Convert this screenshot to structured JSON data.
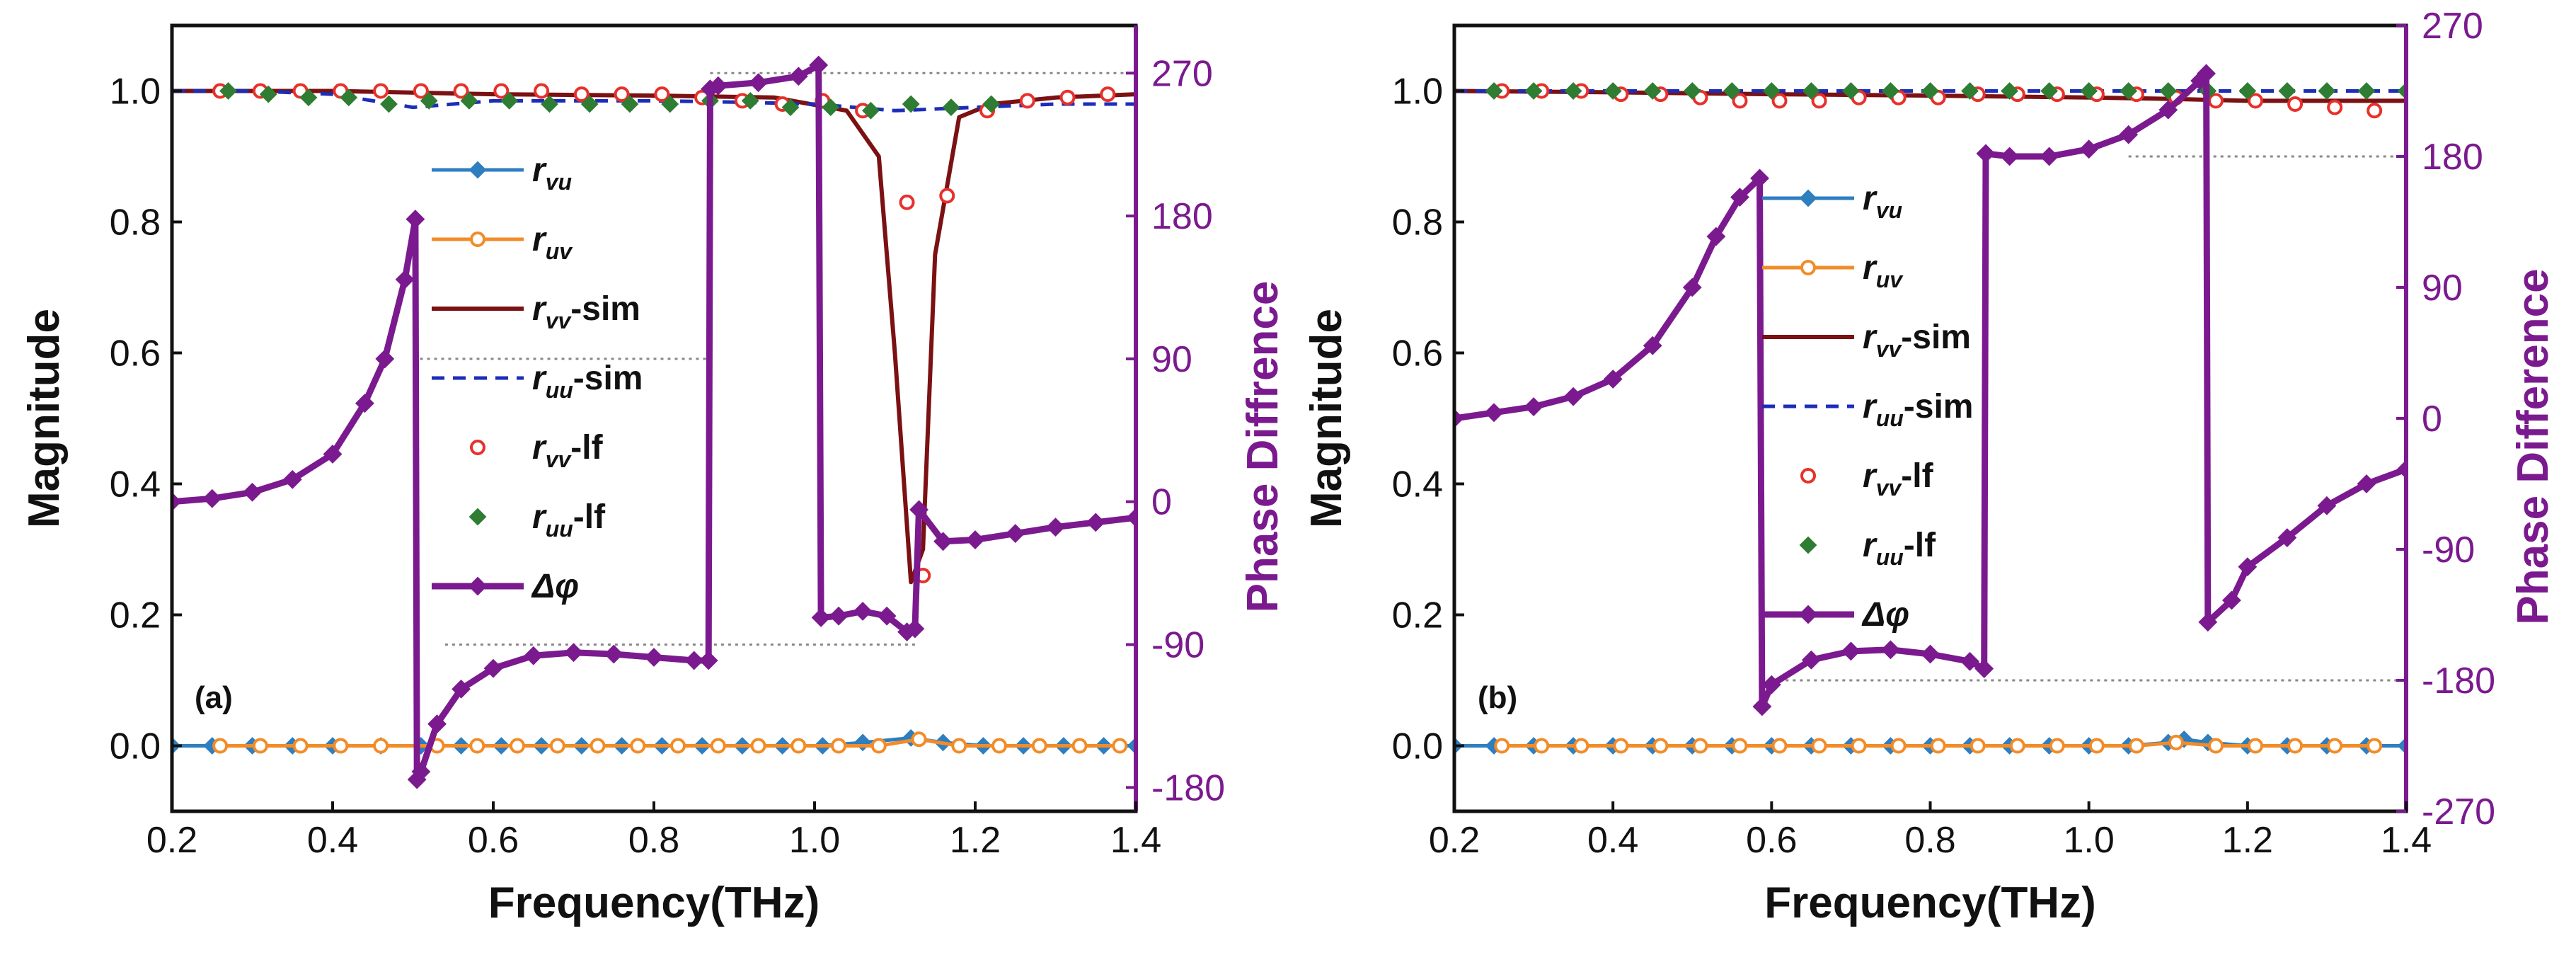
{
  "colors": {
    "r_vu": "#2E7EC0",
    "r_vu_b": "#1F4E79",
    "r_uv": "#F28C28",
    "r_vv_sim": "#7B1113",
    "r_uu_sim": "#1C2DB8",
    "r_vv_lf": "#E8302A",
    "r_uu_lf": "#2E7D32",
    "phase": "#7B1A8F",
    "axis": "#111111",
    "refline": "#888888"
  },
  "chart_data": [
    {
      "type": "line",
      "panel_label": "(a)",
      "xlabel": "Frequency(THz)",
      "ylabel": "Magnitude",
      "y2label": "Phase Diffrence",
      "xlim": [
        0.2,
        1.4
      ],
      "ylim": [
        -0.1,
        1.1
      ],
      "y2lim": [
        -195,
        300
      ],
      "xticks": [
        "0.2",
        "0.4",
        "0.6",
        "0.8",
        "1.0",
        "1.2",
        "1.4"
      ],
      "yticks": [
        "0.0",
        "0.2",
        "0.4",
        "0.6",
        "0.8",
        "1.0"
      ],
      "y2ticks": [
        "-180",
        "-90",
        "0",
        "90",
        "180",
        "270"
      ],
      "grid": false,
      "legend_position": "center-left",
      "legend": [
        {
          "key": "r_vu",
          "base": "r",
          "sub": "vu",
          "suffix": ""
        },
        {
          "key": "r_uv",
          "base": "r",
          "sub": "uv",
          "suffix": ""
        },
        {
          "key": "r_vv_sim",
          "base": "r",
          "sub": "vv",
          "suffix": "-sim"
        },
        {
          "key": "r_uu_sim",
          "base": "r",
          "sub": "uu",
          "suffix": "-sim"
        },
        {
          "key": "r_vv_lf",
          "base": "r",
          "sub": "vv",
          "suffix": "-lf"
        },
        {
          "key": "r_uu_lf",
          "base": "r",
          "sub": "uu",
          "suffix": "-lf"
        },
        {
          "key": "phase",
          "base": "Δφ",
          "sub": "",
          "suffix": ""
        }
      ],
      "ref_lines": [
        {
          "x_from": 0.87,
          "x_to": 1.4,
          "y2": 270
        },
        {
          "x_from": 0.5,
          "x_to": 0.87,
          "y2": 90
        },
        {
          "x_from": 0.54,
          "x_to": 1.13,
          "y2": -90
        }
      ],
      "series": [
        {
          "name": "r_vu",
          "x": [
            0.2,
            0.25,
            0.3,
            0.35,
            0.4,
            0.46,
            0.51,
            0.56,
            0.61,
            0.66,
            0.71,
            0.76,
            0.81,
            0.86,
            0.91,
            0.96,
            1.01,
            1.06,
            1.12,
            1.16,
            1.21,
            1.26,
            1.31,
            1.36,
            1.4
          ],
          "y": [
            0,
            0,
            0,
            0,
            0,
            0,
            0,
            0,
            0,
            0,
            0,
            0,
            0,
            0,
            0,
            0,
            0,
            0.005,
            0.012,
            0.005,
            0,
            0,
            0,
            0,
            0
          ]
        },
        {
          "name": "r_uv",
          "x": [
            0.26,
            0.31,
            0.36,
            0.41,
            0.46,
            0.53,
            0.58,
            0.63,
            0.68,
            0.73,
            0.78,
            0.83,
            0.88,
            0.93,
            0.98,
            1.03,
            1.08,
            1.13,
            1.18,
            1.23,
            1.28,
            1.33,
            1.38
          ],
          "y": [
            0,
            0,
            0,
            0,
            0,
            0,
            0,
            0,
            0,
            0,
            0,
            0,
            0,
            0,
            0,
            0,
            0,
            0.01,
            0,
            0,
            0,
            0,
            0
          ]
        },
        {
          "name": "r_vv_sim",
          "x": [
            0.2,
            0.4,
            0.6,
            0.8,
            0.95,
            1.04,
            1.08,
            1.1,
            1.12,
            1.135,
            1.15,
            1.18,
            1.22,
            1.3,
            1.4
          ],
          "y": [
            1.0,
            1.0,
            0.995,
            0.993,
            0.99,
            0.97,
            0.9,
            0.6,
            0.25,
            0.3,
            0.75,
            0.96,
            0.98,
            0.99,
            0.995
          ]
        },
        {
          "name": "r_uu_sim",
          "x": [
            0.2,
            0.3,
            0.4,
            0.45,
            0.5,
            0.55,
            0.6,
            0.7,
            0.8,
            0.9,
            1.0,
            1.1,
            1.2,
            1.3,
            1.4
          ],
          "y": [
            1.0,
            1.0,
            0.995,
            0.985,
            0.975,
            0.98,
            0.985,
            0.985,
            0.985,
            0.983,
            0.98,
            0.97,
            0.975,
            0.98,
            0.98
          ]
        },
        {
          "name": "r_vv_lf",
          "x": [
            0.26,
            0.31,
            0.36,
            0.41,
            0.46,
            0.51,
            0.56,
            0.61,
            0.66,
            0.71,
            0.76,
            0.81,
            0.86,
            0.91,
            0.96,
            1.01,
            1.06,
            1.115,
            1.135,
            1.165,
            1.215,
            1.265,
            1.315,
            1.365
          ],
          "y": [
            1.0,
            1.0,
            1.0,
            1.0,
            1.0,
            1.0,
            1.0,
            1.0,
            1.0,
            0.995,
            0.995,
            0.995,
            0.99,
            0.985,
            0.98,
            0.985,
            0.97,
            0.83,
            0.26,
            0.84,
            0.97,
            0.985,
            0.99,
            0.995
          ]
        },
        {
          "name": "r_uu_lf",
          "x": [
            0.27,
            0.32,
            0.37,
            0.42,
            0.47,
            0.52,
            0.57,
            0.62,
            0.67,
            0.72,
            0.77,
            0.82,
            0.87,
            0.92,
            0.97,
            1.02,
            1.07,
            1.12,
            1.17,
            1.22
          ],
          "y": [
            1.0,
            0.995,
            0.99,
            0.99,
            0.98,
            0.985,
            0.985,
            0.985,
            0.98,
            0.98,
            0.98,
            0.98,
            0.985,
            0.985,
            0.975,
            0.975,
            0.97,
            0.98,
            0.975,
            0.98
          ]
        },
        {
          "name": "phase",
          "axis": "right",
          "x": [
            0.2,
            0.25,
            0.3,
            0.35,
            0.4,
            0.44,
            0.465,
            0.49,
            0.503,
            0.505,
            0.51,
            0.53,
            0.56,
            0.6,
            0.65,
            0.7,
            0.75,
            0.8,
            0.85,
            0.868,
            0.87,
            0.88,
            0.93,
            0.98,
            1.005,
            1.008,
            1.03,
            1.06,
            1.09,
            1.115,
            1.125,
            1.13,
            1.16,
            1.2,
            1.25,
            1.3,
            1.35,
            1.4
          ],
          "y": [
            0,
            2,
            6,
            14,
            30,
            62,
            90,
            140,
            178,
            -175,
            -170,
            -140,
            -118,
            -105,
            -97,
            -95,
            -96,
            -98,
            -100,
            -100,
            260,
            262,
            264,
            268,
            275,
            -73,
            -72,
            -69,
            -72,
            -82,
            -80,
            -5,
            -25,
            -24,
            -20,
            -16,
            -13,
            -10
          ]
        }
      ]
    },
    {
      "type": "line",
      "panel_label": "(b)",
      "xlabel": "Frequency(THz)",
      "ylabel": "Magnitude",
      "y2label": "Phase Difference",
      "xlim": [
        0.2,
        1.4
      ],
      "ylim": [
        -0.1,
        1.1
      ],
      "y2lim": [
        -270,
        270
      ],
      "xticks": [
        "0.2",
        "0.4",
        "0.6",
        "0.8",
        "1.0",
        "1.2",
        "1.4"
      ],
      "yticks": [
        "0.0",
        "0.2",
        "0.4",
        "0.6",
        "0.8",
        "1.0"
      ],
      "y2ticks": [
        "-270",
        "-180",
        "-90",
        "0",
        "90",
        "180",
        "270"
      ],
      "grid": false,
      "legend_position": "center-left",
      "legend": [
        {
          "key": "r_vu",
          "base": "r",
          "sub": "vu",
          "suffix": ""
        },
        {
          "key": "r_uv",
          "base": "r",
          "sub": "uv",
          "suffix": ""
        },
        {
          "key": "r_vv_sim",
          "base": "r",
          "sub": "vv",
          "suffix": "-sim"
        },
        {
          "key": "r_uu_sim",
          "base": "r",
          "sub": "uu",
          "suffix": "-sim"
        },
        {
          "key": "r_vv_lf",
          "base": "r",
          "sub": "vv",
          "suffix": "-lf"
        },
        {
          "key": "r_uu_lf",
          "base": "r",
          "sub": "uu",
          "suffix": "-lf"
        },
        {
          "key": "phase",
          "base": "Δφ",
          "sub": "",
          "suffix": ""
        }
      ],
      "ref_lines": [
        {
          "x_from": 1.05,
          "x_to": 1.4,
          "y2": 180
        },
        {
          "x_from": 0.6,
          "x_to": 1.4,
          "y2": -180
        }
      ],
      "series": [
        {
          "name": "r_vu",
          "x": [
            0.2,
            0.25,
            0.3,
            0.35,
            0.4,
            0.45,
            0.5,
            0.55,
            0.6,
            0.65,
            0.7,
            0.75,
            0.8,
            0.85,
            0.9,
            0.95,
            1.0,
            1.05,
            1.1,
            1.12,
            1.15,
            1.2,
            1.25,
            1.3,
            1.35,
            1.4
          ],
          "y": [
            0,
            0,
            0,
            0,
            0,
            0,
            0,
            0,
            0,
            0,
            0,
            0,
            0,
            0,
            0,
            0,
            0,
            0,
            0.005,
            0.01,
            0.005,
            0,
            0,
            0,
            0,
            0
          ]
        },
        {
          "name": "r_uv",
          "x": [
            0.26,
            0.31,
            0.36,
            0.41,
            0.46,
            0.51,
            0.56,
            0.61,
            0.66,
            0.71,
            0.76,
            0.81,
            0.86,
            0.91,
            0.96,
            1.01,
            1.06,
            1.11,
            1.16,
            1.21,
            1.26,
            1.31,
            1.36
          ],
          "y": [
            0,
            0,
            0,
            0,
            0,
            0,
            0,
            0,
            0,
            0,
            0,
            0,
            0,
            0,
            0,
            0,
            0,
            0.005,
            0,
            0,
            0,
            0,
            0
          ]
        },
        {
          "name": "r_vv_sim",
          "x": [
            0.2,
            0.4,
            0.6,
            0.8,
            1.0,
            1.1,
            1.2,
            1.3,
            1.4
          ],
          "y": [
            1.0,
            0.998,
            0.995,
            0.993,
            0.99,
            0.988,
            0.985,
            0.985,
            0.985
          ]
        },
        {
          "name": "r_uu_sim",
          "x": [
            0.2,
            0.4,
            0.6,
            0.8,
            1.0,
            1.2,
            1.4
          ],
          "y": [
            1.0,
            1.0,
            1.0,
            1.0,
            1.0,
            1.0,
            1.0
          ]
        },
        {
          "name": "r_vv_lf",
          "x": [
            0.26,
            0.31,
            0.36,
            0.41,
            0.46,
            0.51,
            0.56,
            0.61,
            0.66,
            0.71,
            0.76,
            0.81,
            0.86,
            0.91,
            0.96,
            1.01,
            1.06,
            1.11,
            1.16,
            1.21,
            1.26,
            1.31,
            1.36
          ],
          "y": [
            1.0,
            1.0,
            1.0,
            0.995,
            0.995,
            0.99,
            0.985,
            0.985,
            0.985,
            0.99,
            0.99,
            0.99,
            0.995,
            0.995,
            0.995,
            0.995,
            0.995,
            0.99,
            0.985,
            0.985,
            0.98,
            0.975,
            0.97
          ]
        },
        {
          "name": "r_uu_lf",
          "x": [
            0.25,
            0.3,
            0.35,
            0.4,
            0.45,
            0.5,
            0.55,
            0.6,
            0.65,
            0.7,
            0.75,
            0.8,
            0.85,
            0.9,
            0.95,
            1.0,
            1.05,
            1.1,
            1.15,
            1.2,
            1.25,
            1.3,
            1.35,
            1.4
          ],
          "y": [
            1.0,
            1.0,
            1.0,
            1.0,
            1.0,
            1.0,
            1.0,
            1.0,
            1.0,
            1.0,
            1.0,
            1.0,
            1.0,
            1.0,
            1.0,
            1.0,
            1.0,
            1.0,
            1.0,
            1.0,
            1.0,
            1.0,
            1.0,
            1.0
          ]
        },
        {
          "name": "phase",
          "axis": "right",
          "x": [
            0.2,
            0.25,
            0.3,
            0.35,
            0.4,
            0.45,
            0.5,
            0.53,
            0.56,
            0.585,
            0.588,
            0.6,
            0.65,
            0.7,
            0.75,
            0.8,
            0.85,
            0.868,
            0.87,
            0.9,
            0.95,
            1.0,
            1.05,
            1.1,
            1.14,
            1.148,
            1.15,
            1.18,
            1.2,
            1.25,
            1.3,
            1.35,
            1.4
          ],
          "y": [
            0,
            4,
            8,
            15,
            27,
            50,
            90,
            125,
            152,
            165,
            -198,
            -183,
            -166,
            -160,
            -159,
            -162,
            -167,
            -172,
            182,
            180,
            180,
            185,
            195,
            212,
            232,
            237,
            -140,
            -125,
            -102,
            -82,
            -60,
            -45,
            -35
          ]
        }
      ]
    }
  ]
}
